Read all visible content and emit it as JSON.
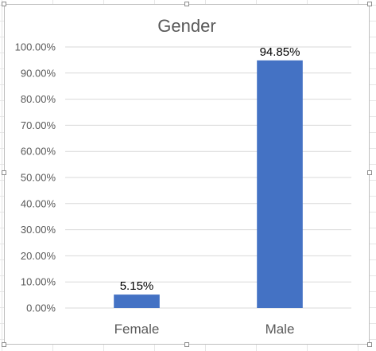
{
  "chart_data": {
    "type": "bar",
    "title": "Gender",
    "categories": [
      "Female",
      "Male"
    ],
    "values": [
      5.15,
      94.85
    ],
    "data_labels": [
      "5.15%",
      "94.85%"
    ],
    "ylim": [
      0,
      100
    ],
    "yticks": [
      0,
      10,
      20,
      30,
      40,
      50,
      60,
      70,
      80,
      90,
      100
    ],
    "ytick_labels": [
      "0.00%",
      "10.00%",
      "20.00%",
      "30.00%",
      "40.00%",
      "50.00%",
      "60.00%",
      "70.00%",
      "80.00%",
      "90.00%",
      "100.00%"
    ],
    "grid": true,
    "legend": "none",
    "bar_color": "#4472c4",
    "grid_color": "#d9d9d9"
  }
}
